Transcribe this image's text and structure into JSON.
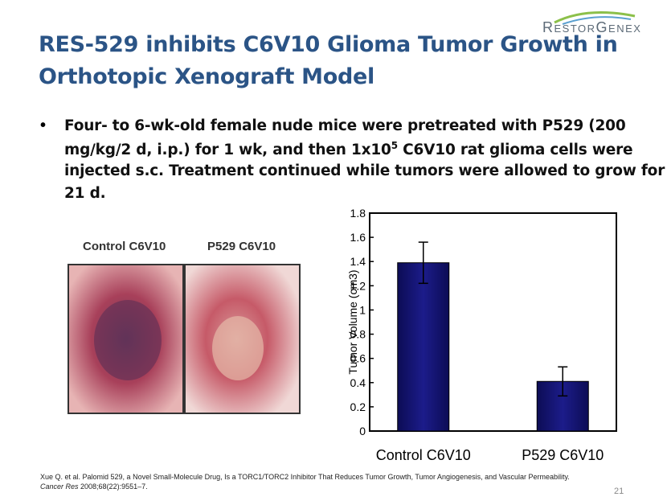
{
  "logo": "RestorGenex",
  "title": [
    "RES-529 inhibits C6V10 Glioma Tumor Growth in",
    "Orthotopic Xenograft Model"
  ],
  "bullet": {
    "line0": "Four- to 6-wk-old female nude mice were pretreated with P529 (200",
    "line1_before": "mg/kg/2 d, i.p.) for 1 wk, and then 1x10",
    "line1_sup": "5",
    "line1_after": " C6V10 rat glioma cells were",
    "line2": "injected s.c. Treatment continued while tumors were allowed to grow for",
    "line3": "21 d."
  },
  "photo_labels": [
    "Control C6V10",
    "P529 C6V10"
  ],
  "chart_data": {
    "type": "bar",
    "categories": [
      "Control C6V10",
      "P529 C6V10"
    ],
    "values": [
      1.39,
      0.41
    ],
    "errors": [
      0.17,
      0.12
    ],
    "color": "#1c1c8a",
    "y_label": "Tumor Volume (cm3)",
    "ylim": [
      0,
      1.8
    ],
    "yticks": [
      0,
      0.2,
      0.4,
      0.6,
      0.8,
      1,
      1.2,
      1.4,
      1.6,
      1.8
    ]
  },
  "citation": {
    "text": "Xue Q. et al. Palomid 529, a Novel Small-Molecule Drug, Is a TORC1/TORC2 Inhibitor That Reduces Tumor Growth, Tumor Angiogenesis, and Vascular Permeability. ",
    "journal": "Cancer Res",
    "ref": " 2008;68(22):9551–7."
  },
  "page_number": "21"
}
